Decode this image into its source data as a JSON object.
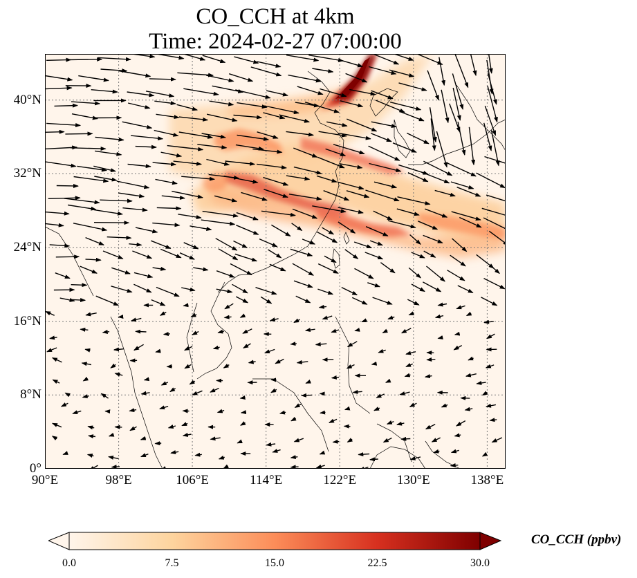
{
  "title": {
    "line1": "CO_CCH at 4km",
    "line2": "Time: 2024-02-27 07:00:00"
  },
  "map": {
    "extent": {
      "lon": [
        90,
        140
      ],
      "lat": [
        0,
        45
      ]
    },
    "lat_ticks": [
      {
        "value": 0,
        "label": "0°"
      },
      {
        "value": 8,
        "label": "8°N"
      },
      {
        "value": 16,
        "label": "16°N"
      },
      {
        "value": 24,
        "label": "24°N"
      },
      {
        "value": 32,
        "label": "32°N"
      },
      {
        "value": 40,
        "label": "40°N"
      }
    ],
    "lon_ticks": [
      {
        "value": 90,
        "label": "90°E"
      },
      {
        "value": 98,
        "label": "98°E"
      },
      {
        "value": 106,
        "label": "106°E"
      },
      {
        "value": 114,
        "label": "114°E"
      },
      {
        "value": 122,
        "label": "122°E"
      },
      {
        "value": 130,
        "label": "130°E"
      },
      {
        "value": 138,
        "label": "138°E"
      }
    ],
    "gridlines": true,
    "background_color": "#fff5eb",
    "coastline_color": "#000000"
  },
  "colorbar": {
    "label": "CO_CCH (ppbv)",
    "colormap": "OrRd",
    "range": [
      0,
      30
    ],
    "extend": "both",
    "ticks": [
      {
        "value": 0,
        "label": "0.0"
      },
      {
        "value": 7.5,
        "label": "7.5"
      },
      {
        "value": 15,
        "label": "15.0"
      },
      {
        "value": 22.5,
        "label": "22.5"
      },
      {
        "value": 30,
        "label": "30.0"
      }
    ],
    "stops": [
      "#fff5eb",
      "#fdd49e",
      "#fc8d59",
      "#d7301f",
      "#7f0000"
    ]
  }
}
